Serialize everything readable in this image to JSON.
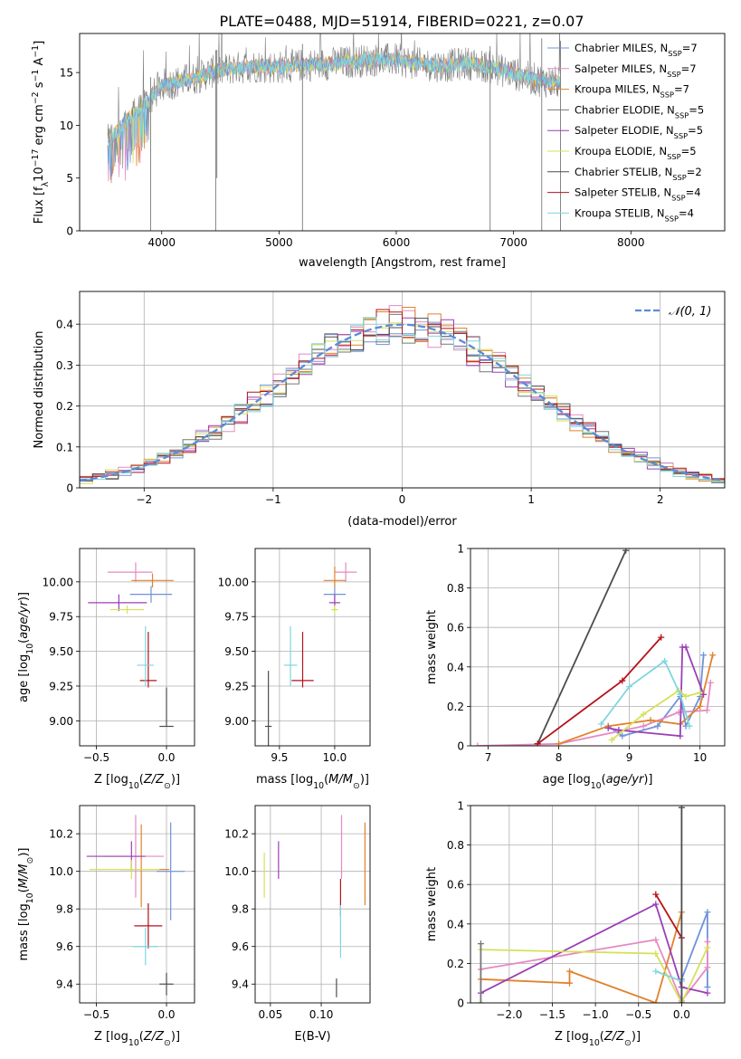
{
  "figure_title": "PLATE=0488, MJD=51914, FIBERID=0221, z=0.07",
  "colors": {
    "chabrier_miles": "#6f93d9",
    "salpeter_miles": "#e58ac3",
    "kroupa_miles": "#e0822d",
    "chabrier_elodie": "#777777",
    "salpeter_elodie": "#9b3fb5",
    "kroupa_elodie": "#d7e05a",
    "chabrier_stelib": "#4d4d4d",
    "salpeter_stelib": "#b5121b",
    "kroupa_stelib": "#7fd6de",
    "gauss": "#5b8bd6"
  },
  "chart_data": [
    {
      "id": "spectrum",
      "type": "line",
      "title": "PLATE=0488, MJD=51914, FIBERID=0221, z=0.07",
      "xlabel": "wavelength [Angstrom, rest frame]",
      "ylabel": "Flux [f_λ10^-17 erg cm^-2 s^-1 A^-1]",
      "xlim": [
        3300,
        8800
      ],
      "ylim": [
        0,
        18.7
      ],
      "xticks": [
        4000,
        5000,
        6000,
        7000,
        8000
      ],
      "yticks": [
        0,
        5,
        10,
        15
      ],
      "legend_position": "top-right",
      "legend": [
        {
          "label": "Chabrier MILES, N_SSP=7",
          "color": "#6f93d9"
        },
        {
          "label": "Salpeter MILES, N_SSP=7",
          "color": "#e58ac3"
        },
        {
          "label": "Kroupa MILES, N_SSP=7",
          "color": "#e0822d"
        },
        {
          "label": "Chabrier ELODIE, N_SSP=5",
          "color": "#777777"
        },
        {
          "label": "Salpeter ELODIE, N_SSP=5",
          "color": "#9b3fb5"
        },
        {
          "label": "Kroupa ELODIE, N_SSP=5",
          "color": "#d7e05a"
        },
        {
          "label": "Chabrier STELIB, N_SSP=2",
          "color": "#4d4d4d"
        },
        {
          "label": "Salpeter STELIB, N_SSP=4",
          "color": "#b5121b"
        },
        {
          "label": "Kroupa STELIB, N_SSP=4",
          "color": "#7fd6de"
        }
      ],
      "continuum": {
        "x": [
          3540,
          3600,
          3700,
          3800,
          3900,
          4000,
          4100,
          4200,
          4300,
          4400,
          4600,
          4800,
          5000,
          5200,
          5400,
          5600,
          5800,
          6000,
          6200,
          6400,
          6600,
          6800,
          7000,
          7200,
          7400
        ],
        "y": [
          8.5,
          9.2,
          10.5,
          11.3,
          12.5,
          13.8,
          14.0,
          14.3,
          14.5,
          15.0,
          15.4,
          15.6,
          15.5,
          15.7,
          15.8,
          16.0,
          16.2,
          16.2,
          15.8,
          15.6,
          15.9,
          15.5,
          14.9,
          14.3,
          14.0
        ]
      },
      "spikes": [
        {
          "x": 3905,
          "y": 0.0
        },
        {
          "x": 4460,
          "y": 0.0
        },
        {
          "x": 4470,
          "y": 5.0
        },
        {
          "x": 5200,
          "y": 0.0
        },
        {
          "x": 6800,
          "y": 0.0
        },
        {
          "x": 7240,
          "y": 0.0
        },
        {
          "x": 7400,
          "y": 0.0
        }
      ]
    },
    {
      "id": "residuals",
      "type": "histogram",
      "xlabel": "(data-model)/error",
      "ylabel": "Normed distribution",
      "xlim": [
        -2.5,
        2.5
      ],
      "ylim": [
        0,
        0.48
      ],
      "xticks": [
        -2,
        -1,
        0,
        1,
        2
      ],
      "yticks": [
        0.0,
        0.1,
        0.2,
        0.3,
        0.4
      ],
      "grid": true,
      "legend_position": "top-right",
      "gauss_label": "𝒩(0, 1)",
      "bin_width": 0.1
    },
    {
      "id": "age_vs_Z",
      "type": "errorbar",
      "xlabel": "Z [log10(Z/Z⊙)]",
      "ylabel": "age [log10(age/yr)]",
      "xlim": [
        -0.62,
        0.2
      ],
      "ylim": [
        8.82,
        10.24
      ],
      "xticks": [
        -0.5,
        0.0
      ],
      "xticklabels": [
        "−0.5",
        "0.0"
      ],
      "yticks": [
        9.0,
        9.25,
        9.5,
        9.75,
        10.0
      ],
      "yticklabels": [
        "9.00",
        "9.25",
        "9.50",
        "9.75",
        "10.00"
      ],
      "grid": true,
      "points": [
        {
          "x": -0.11,
          "y": 9.91,
          "xerr": [
            0.15,
            0.15
          ],
          "yerr": [
            0.06,
            0.06
          ],
          "color": "#6f93d9"
        },
        {
          "x": -0.22,
          "y": 10.07,
          "xerr": [
            0.2,
            0.12
          ],
          "yerr": [
            0.07,
            0.07
          ],
          "color": "#e58ac3"
        },
        {
          "x": -0.1,
          "y": 10.01,
          "xerr": [
            0.15,
            0.15
          ],
          "yerr": [
            0.05,
            0.05
          ],
          "color": "#e0822d"
        },
        {
          "x": -0.34,
          "y": 9.85,
          "xerr": [
            0.22,
            0.2
          ],
          "yerr": [
            0.06,
            0.06
          ],
          "color": "#9b3fb5"
        },
        {
          "x": -0.28,
          "y": 9.8,
          "xerr": [
            0.12,
            0.12
          ],
          "yerr": [
            0.03,
            0.03
          ],
          "color": "#d7e05a"
        },
        {
          "x": 0.0,
          "y": 8.96,
          "xerr": [
            0.05,
            0.05
          ],
          "yerr": [
            0.0,
            0.28
          ],
          "color": "#4d4d4d"
        },
        {
          "x": -0.13,
          "y": 9.29,
          "xerr": [
            0.06,
            0.06
          ],
          "yerr": [
            0.05,
            0.35
          ],
          "color": "#b5121b"
        },
        {
          "x": -0.15,
          "y": 9.4,
          "xerr": [
            0.06,
            0.06
          ],
          "yerr": [
            0.15,
            0.28
          ],
          "color": "#7fd6de"
        }
      ]
    },
    {
      "id": "age_vs_mass",
      "type": "errorbar",
      "xlabel": "mass [log10(M/M⊙)]",
      "xlim": [
        9.28,
        10.32
      ],
      "ylim": [
        8.82,
        10.24
      ],
      "xticks": [
        9.5,
        10.0
      ],
      "xticklabels": [
        "9.5",
        "10.0"
      ],
      "yticks": [
        9.0,
        9.25,
        9.5,
        9.75,
        10.0
      ],
      "yticklabels": [
        "9.00",
        "9.25",
        "9.50",
        "9.75",
        "10.00"
      ],
      "grid": true,
      "points": [
        {
          "x": 10.0,
          "y": 9.91,
          "xerr": [
            0.1,
            0.1
          ],
          "yerr": [
            0.06,
            0.06
          ],
          "color": "#6f93d9"
        },
        {
          "x": 10.1,
          "y": 10.07,
          "xerr": [
            0.1,
            0.1
          ],
          "yerr": [
            0.07,
            0.07
          ],
          "color": "#e58ac3"
        },
        {
          "x": 10.0,
          "y": 10.01,
          "xerr": [
            0.1,
            0.1
          ],
          "yerr": [
            0.05,
            0.1
          ],
          "color": "#e0822d"
        },
        {
          "x": 10.0,
          "y": 9.85,
          "xerr": [
            0.05,
            0.05
          ],
          "yerr": [
            0.06,
            0.06
          ],
          "color": "#9b3fb5"
        },
        {
          "x": 10.0,
          "y": 9.8,
          "xerr": [
            0.03,
            0.03
          ],
          "yerr": [
            0.03,
            0.03
          ],
          "color": "#d7e05a"
        },
        {
          "x": 9.4,
          "y": 8.96,
          "xerr": [
            0.03,
            0.03
          ],
          "yerr": [
            0.3,
            0.4
          ],
          "color": "#4d4d4d"
        },
        {
          "x": 9.71,
          "y": 9.29,
          "xerr": [
            0.1,
            0.1
          ],
          "yerr": [
            0.05,
            0.35
          ],
          "color": "#b5121b"
        },
        {
          "x": 9.6,
          "y": 9.4,
          "xerr": [
            0.06,
            0.06
          ],
          "yerr": [
            0.15,
            0.28
          ],
          "color": "#7fd6de"
        }
      ]
    },
    {
      "id": "weight_vs_age",
      "type": "line",
      "xlabel": "age [log10(age/yr)]",
      "ylabel": "mass weight",
      "xlim": [
        6.75,
        10.35
      ],
      "ylim": [
        0,
        1.0
      ],
      "xticks": [
        7,
        8,
        9,
        10
      ],
      "yticks": [
        0.0,
        0.2,
        0.4,
        0.6,
        0.8,
        1.0
      ],
      "grid": true,
      "series": [
        {
          "color": "#6f93d9",
          "x": [
            8.7,
            8.9,
            9.4,
            9.72,
            9.8,
            10.0,
            10.05
          ],
          "y": [
            0.1,
            0.05,
            0.1,
            0.25,
            0.1,
            0.25,
            0.46
          ]
        },
        {
          "color": "#e58ac3",
          "x": [
            6.85,
            8.0,
            9.2,
            9.7,
            10.1,
            10.15
          ],
          "y": [
            0.0,
            0.01,
            0.1,
            0.17,
            0.18,
            0.32
          ]
        },
        {
          "color": "#e0822d",
          "x": [
            8.0,
            8.7,
            9.3,
            9.72,
            10.0,
            10.18
          ],
          "y": [
            0.01,
            0.1,
            0.13,
            0.11,
            0.2,
            0.46
          ]
        },
        {
          "color": "#9b3fb5",
          "x": [
            8.7,
            8.85,
            9.72,
            9.75,
            9.8,
            10.05
          ],
          "y": [
            0.09,
            0.08,
            0.05,
            0.5,
            0.5,
            0.26
          ]
        },
        {
          "color": "#d7e05a",
          "x": [
            8.75,
            9.2,
            9.7,
            9.8,
            10.0
          ],
          "y": [
            0.03,
            0.16,
            0.28,
            0.25,
            0.27
          ]
        },
        {
          "color": "#4d4d4d",
          "x": [
            7.7,
            8.95
          ],
          "y": [
            0.01,
            0.99
          ]
        },
        {
          "color": "#b5121b",
          "x": [
            7.7,
            8.9,
            9.45
          ],
          "y": [
            0.01,
            0.33,
            0.55
          ]
        },
        {
          "color": "#7fd6de",
          "x": [
            8.6,
            9.0,
            9.5,
            9.72,
            9.85
          ],
          "y": [
            0.11,
            0.3,
            0.43,
            0.26,
            0.1
          ]
        }
      ]
    },
    {
      "id": "mass_vs_Z",
      "type": "errorbar",
      "xlabel": "Z [log10(Z/Z⊙)]",
      "ylabel": "mass [log10(M/M⊙)]",
      "xlim": [
        -0.62,
        0.2
      ],
      "ylim": [
        9.3,
        10.35
      ],
      "xticks": [
        -0.5,
        0.0
      ],
      "xticklabels": [
        "−0.5",
        "0.0"
      ],
      "yticks": [
        9.4,
        9.6,
        9.8,
        10.0,
        10.2
      ],
      "yticklabels": [
        "9.4",
        "9.6",
        "9.8",
        "10.0",
        "10.2"
      ],
      "grid": true,
      "points": [
        {
          "x": 0.03,
          "y": 10.0,
          "xerr": [
            0.1,
            0.1
          ],
          "yerr": [
            0.26,
            0.26
          ],
          "color": "#6f93d9"
        },
        {
          "x": -0.22,
          "y": 10.08,
          "xerr": [
            0.23,
            0.2
          ],
          "yerr": [
            0.22,
            0.22
          ],
          "color": "#e58ac3"
        },
        {
          "x": -0.18,
          "y": 10.01,
          "xerr": [
            0.15,
            0.2
          ],
          "yerr": [
            0.2,
            0.24
          ],
          "color": "#e0822d"
        },
        {
          "x": -0.25,
          "y": 10.08,
          "xerr": [
            0.32,
            0.1
          ],
          "yerr": [
            0.08,
            0.08
          ],
          "color": "#9b3fb5"
        },
        {
          "x": -0.25,
          "y": 10.01,
          "xerr": [
            0.3,
            0.2
          ],
          "yerr": [
            0.05,
            0.05
          ],
          "color": "#d7e05a"
        },
        {
          "x": 0.0,
          "y": 9.4,
          "xerr": [
            0.05,
            0.05
          ],
          "yerr": [
            0.06,
            0.06
          ],
          "color": "#4d4d4d"
        },
        {
          "x": -0.13,
          "y": 9.71,
          "xerr": [
            0.1,
            0.1
          ],
          "yerr": [
            0.12,
            0.12
          ],
          "color": "#b5121b"
        },
        {
          "x": -0.15,
          "y": 9.6,
          "xerr": [
            0.09,
            0.09
          ],
          "yerr": [
            0.1,
            0.1
          ],
          "color": "#7fd6de"
        }
      ]
    },
    {
      "id": "mass_vs_ebv",
      "type": "errorbar",
      "xlabel": "E(B-V)",
      "xlim": [
        0.035,
        0.148
      ],
      "ylim": [
        9.3,
        10.35
      ],
      "xticks": [
        0.05,
        0.1
      ],
      "xticklabels": [
        "0.05",
        "0.10"
      ],
      "yticks": [
        9.4,
        9.6,
        9.8,
        10.0,
        10.2
      ],
      "yticklabels": [
        "9.4",
        "9.6",
        "9.8",
        "10.0",
        "10.2"
      ],
      "grid": true,
      "points": [
        {
          "x": 0.119,
          "y": 9.86,
          "xerr": [
            0,
            0
          ],
          "yerr": [
            0.1,
            0.1
          ],
          "color": "#b5121b"
        },
        {
          "x": 0.119,
          "y": 9.68,
          "xerr": [
            0,
            0
          ],
          "yerr": [
            0.14,
            0.14
          ],
          "color": "#7fd6de"
        },
        {
          "x": 0.12,
          "y": 10.13,
          "xerr": [
            0,
            0
          ],
          "yerr": [
            0.17,
            0.17
          ],
          "color": "#e58ac3"
        },
        {
          "x": 0.058,
          "y": 10.06,
          "xerr": [
            0,
            0
          ],
          "yerr": [
            0.1,
            0.1
          ],
          "color": "#9b3fb5"
        },
        {
          "x": 0.044,
          "y": 9.98,
          "xerr": [
            0,
            0
          ],
          "yerr": [
            0.12,
            0.12
          ],
          "color": "#d7e05a"
        },
        {
          "x": 0.115,
          "y": 9.38,
          "xerr": [
            0,
            0
          ],
          "yerr": [
            0.05,
            0.05
          ],
          "color": "#4d4d4d"
        },
        {
          "x": 0.143,
          "y": 10.04,
          "xerr": [
            0,
            0
          ],
          "yerr": [
            0.22,
            0.22
          ],
          "color": "#e0822d"
        }
      ]
    },
    {
      "id": "weight_vs_Z",
      "type": "line",
      "xlabel": "Z [log10(Z/Z⊙)]",
      "ylabel": "mass weight",
      "xlim": [
        -2.45,
        0.5
      ],
      "ylim": [
        0,
        1.0
      ],
      "xticks": [
        -2.0,
        -1.5,
        -1.0,
        -0.5,
        0.0
      ],
      "xticklabels": [
        "−2.0",
        "−1.5",
        "−1.0",
        "−0.5",
        "0.0"
      ],
      "yticks": [
        0.0,
        0.2,
        0.4,
        0.6,
        0.8,
        1.0
      ],
      "grid": true,
      "series": [
        {
          "color": "#6f93d9",
          "x": [
            0.0,
            0.3,
            0.3
          ],
          "y": [
            0.12,
            0.46,
            0.08
          ]
        },
        {
          "color": "#e58ac3",
          "x": [
            -2.33,
            -0.3,
            0.0,
            0.3,
            0.3
          ],
          "y": [
            0.17,
            0.32,
            0.01,
            0.18,
            0.31
          ]
        },
        {
          "color": "#e0822d",
          "x": [
            -2.33,
            -1.3,
            -1.3,
            -0.3,
            0.0
          ],
          "y": [
            0.12,
            0.1,
            0.16,
            0.0,
            0.46
          ]
        },
        {
          "color": "#9b3fb5",
          "x": [
            -2.33,
            -0.3,
            0.0,
            0.3
          ],
          "y": [
            0.05,
            0.5,
            0.08,
            0.05
          ]
        },
        {
          "color": "#d7e05a",
          "x": [
            -2.33,
            -0.3,
            0.0,
            0.3
          ],
          "y": [
            0.27,
            0.25,
            0.0,
            0.28
          ]
        },
        {
          "color": "#b5121b",
          "x": [
            -0.3,
            0.0,
            0.0
          ],
          "y": [
            0.55,
            0.33,
            0.0
          ]
        },
        {
          "color": "#7fd6de",
          "x": [
            -0.3,
            0.0,
            0.0
          ],
          "y": [
            0.16,
            0.11,
            0.0
          ]
        },
        {
          "color": "#4d4d4d",
          "x": [
            0.0,
            0.0
          ],
          "y": [
            0.0,
            0.99
          ]
        },
        {
          "color": "#777777",
          "x": [
            -2.33,
            -2.33
          ],
          "y": [
            0.0,
            0.3
          ]
        }
      ]
    }
  ]
}
